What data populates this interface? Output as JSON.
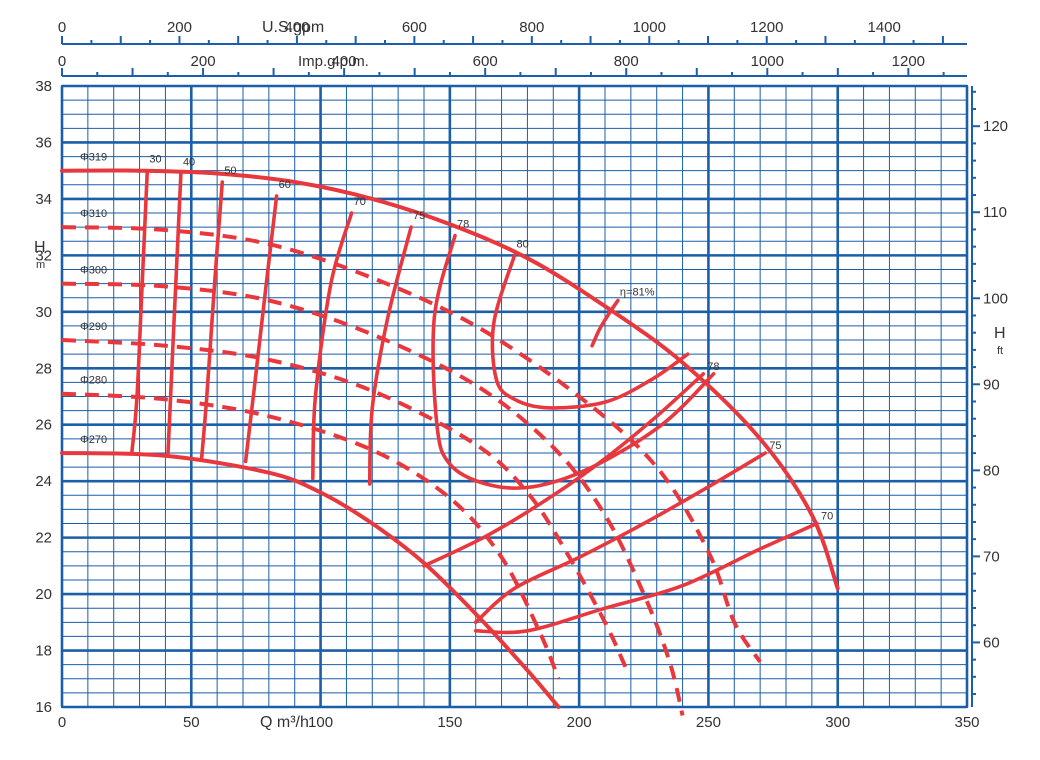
{
  "chart_data": {
    "type": "line",
    "title": "",
    "xlabel": "Q m³/h",
    "ylabel": "H",
    "ylabel_unit": "m",
    "y2label": "H",
    "y2label_unit": "ft",
    "top_axis_label": "U.S.gpm",
    "second_axis_label": "Imp.g.p.m.",
    "xlim": [
      0,
      350
    ],
    "ylim": [
      16,
      38
    ],
    "x_ticks": [
      0,
      50,
      100,
      150,
      200,
      250,
      300,
      350
    ],
    "y_ticks": [
      16,
      18,
      20,
      22,
      24,
      26,
      28,
      30,
      32,
      34,
      36,
      38
    ],
    "usgpm_ticks": [
      0,
      200,
      400,
      600,
      800,
      1000,
      1200,
      1400
    ],
    "impgpm_ticks": [
      0,
      200,
      400,
      600,
      800,
      1000,
      1200
    ],
    "ft_ticks": [
      60,
      70,
      80,
      90,
      100,
      110,
      120
    ],
    "grid": true,
    "impeller_curves": [
      {
        "name": "Φ319",
        "style": "solid",
        "points": [
          [
            0,
            35.0
          ],
          [
            30,
            35.0
          ],
          [
            60,
            34.9
          ],
          [
            90,
            34.6
          ],
          [
            120,
            34.0
          ],
          [
            150,
            33.1
          ],
          [
            180,
            31.9
          ],
          [
            210,
            30.2
          ],
          [
            240,
            28.2
          ],
          [
            270,
            25.5
          ],
          [
            290,
            22.8
          ],
          [
            300,
            20.2
          ]
        ]
      },
      {
        "name": "Φ310",
        "style": "dashed",
        "points": [
          [
            0,
            33.0
          ],
          [
            40,
            32.9
          ],
          [
            80,
            32.4
          ],
          [
            120,
            31.2
          ],
          [
            160,
            29.5
          ],
          [
            200,
            27.0
          ],
          [
            230,
            24.5
          ],
          [
            250,
            21.5
          ],
          [
            260,
            19.0
          ],
          [
            270,
            17.6
          ]
        ]
      },
      {
        "name": "Φ300",
        "style": "dashed",
        "points": [
          [
            0,
            31.0
          ],
          [
            40,
            30.9
          ],
          [
            80,
            30.4
          ],
          [
            120,
            29.2
          ],
          [
            160,
            27.4
          ],
          [
            190,
            25.2
          ],
          [
            210,
            22.8
          ],
          [
            225,
            20.0
          ],
          [
            235,
            17.6
          ],
          [
            240,
            15.7
          ]
        ]
      },
      {
        "name": "Φ290",
        "style": "dashed",
        "points": [
          [
            0,
            29.0
          ],
          [
            40,
            28.8
          ],
          [
            80,
            28.3
          ],
          [
            120,
            27.2
          ],
          [
            160,
            25.3
          ],
          [
            180,
            23.6
          ],
          [
            195,
            21.5
          ],
          [
            210,
            19.0
          ],
          [
            218,
            17.4
          ]
        ]
      },
      {
        "name": "Φ280",
        "style": "dashed",
        "points": [
          [
            0,
            27.1
          ],
          [
            40,
            26.9
          ],
          [
            80,
            26.3
          ],
          [
            120,
            25.1
          ],
          [
            150,
            23.4
          ],
          [
            170,
            21.3
          ],
          [
            185,
            18.6
          ],
          [
            192,
            17.0
          ]
        ]
      },
      {
        "name": "Φ270",
        "style": "solid",
        "points": [
          [
            0,
            25.0
          ],
          [
            40,
            24.9
          ],
          [
            80,
            24.3
          ],
          [
            100,
            23.6
          ],
          [
            120,
            22.5
          ],
          [
            140,
            21.1
          ],
          [
            160,
            19.3
          ],
          [
            180,
            17.3
          ],
          [
            192,
            16.0
          ]
        ]
      }
    ],
    "efficiency_curves": [
      {
        "name": "30",
        "points": [
          [
            33,
            35.0
          ],
          [
            31,
            31.0
          ],
          [
            29,
            27.0
          ],
          [
            27,
            25.0
          ]
        ]
      },
      {
        "name": "40",
        "points": [
          [
            46,
            34.9
          ],
          [
            44,
            31.0
          ],
          [
            42,
            27.0
          ],
          [
            41,
            25.0
          ]
        ]
      },
      {
        "name": "50",
        "points": [
          [
            62,
            34.6
          ],
          [
            59,
            31.0
          ],
          [
            56,
            27.0
          ],
          [
            54,
            24.8
          ]
        ]
      },
      {
        "name": "60",
        "points": [
          [
            83,
            34.1
          ],
          [
            79,
            31.0
          ],
          [
            74,
            27.0
          ],
          [
            71,
            24.7
          ]
        ]
      },
      {
        "name": "70",
        "points": [
          [
            112,
            33.5
          ],
          [
            104,
            31.0
          ],
          [
            98,
            27.0
          ],
          [
            97,
            24.1
          ]
        ]
      },
      {
        "name": "75",
        "points": [
          [
            135,
            33.0
          ],
          [
            126,
            29.8
          ],
          [
            120,
            26.6
          ],
          [
            119,
            23.9
          ]
        ]
      },
      {
        "name": "78",
        "points": [
          [
            152,
            32.7
          ],
          [
            144,
            29.8
          ],
          [
            145,
            26.0
          ],
          [
            150,
            24.6
          ],
          [
            164,
            23.9
          ],
          [
            182,
            23.8
          ],
          [
            205,
            24.5
          ],
          [
            232,
            26.0
          ],
          [
            252,
            27.8
          ]
        ]
      },
      {
        "name": "80",
        "points": [
          [
            175,
            32.0
          ],
          [
            167,
            29.6
          ],
          [
            168,
            27.6
          ],
          [
            175,
            26.9
          ],
          [
            188,
            26.6
          ],
          [
            210,
            26.8
          ],
          [
            228,
            27.6
          ],
          [
            242,
            28.5
          ]
        ]
      },
      {
        "name": "78",
        "points": [
          [
            248,
            27.8
          ],
          [
            230,
            26.3
          ],
          [
            210,
            24.8
          ],
          [
            190,
            23.5
          ],
          [
            165,
            22.1
          ],
          [
            140,
            21.0
          ]
        ]
      },
      {
        "name": "75",
        "points": [
          [
            272,
            25.0
          ],
          [
            250,
            23.8
          ],
          [
            225,
            22.5
          ],
          [
            200,
            21.3
          ],
          [
            175,
            20.2
          ],
          [
            160,
            19.0
          ]
        ]
      },
      {
        "name": "70",
        "points": [
          [
            292,
            22.5
          ],
          [
            270,
            21.6
          ],
          [
            240,
            20.3
          ],
          [
            210,
            19.5
          ],
          [
            180,
            18.7
          ],
          [
            160,
            18.7
          ]
        ]
      }
    ],
    "best_efficiency": {
      "label": "η=81%",
      "points": [
        [
          215,
          30.4
        ],
        [
          212,
          30.0
        ],
        [
          208,
          29.4
        ],
        [
          205,
          28.8
        ]
      ]
    },
    "diameter_labels": [
      "Φ319",
      "Φ310",
      "Φ300",
      "Φ290",
      "Φ280",
      "Φ270"
    ],
    "efficiency_labels_top": [
      "30",
      "40",
      "50",
      "60",
      "70",
      "75",
      "78",
      "80"
    ],
    "efficiency_labels_right": [
      "η=81%",
      "80",
      "78",
      "75",
      "70"
    ]
  },
  "colors": {
    "grid": "#1a5fa8",
    "curve": "#e8383d",
    "text": "#333333",
    "background": "#ffffff"
  }
}
